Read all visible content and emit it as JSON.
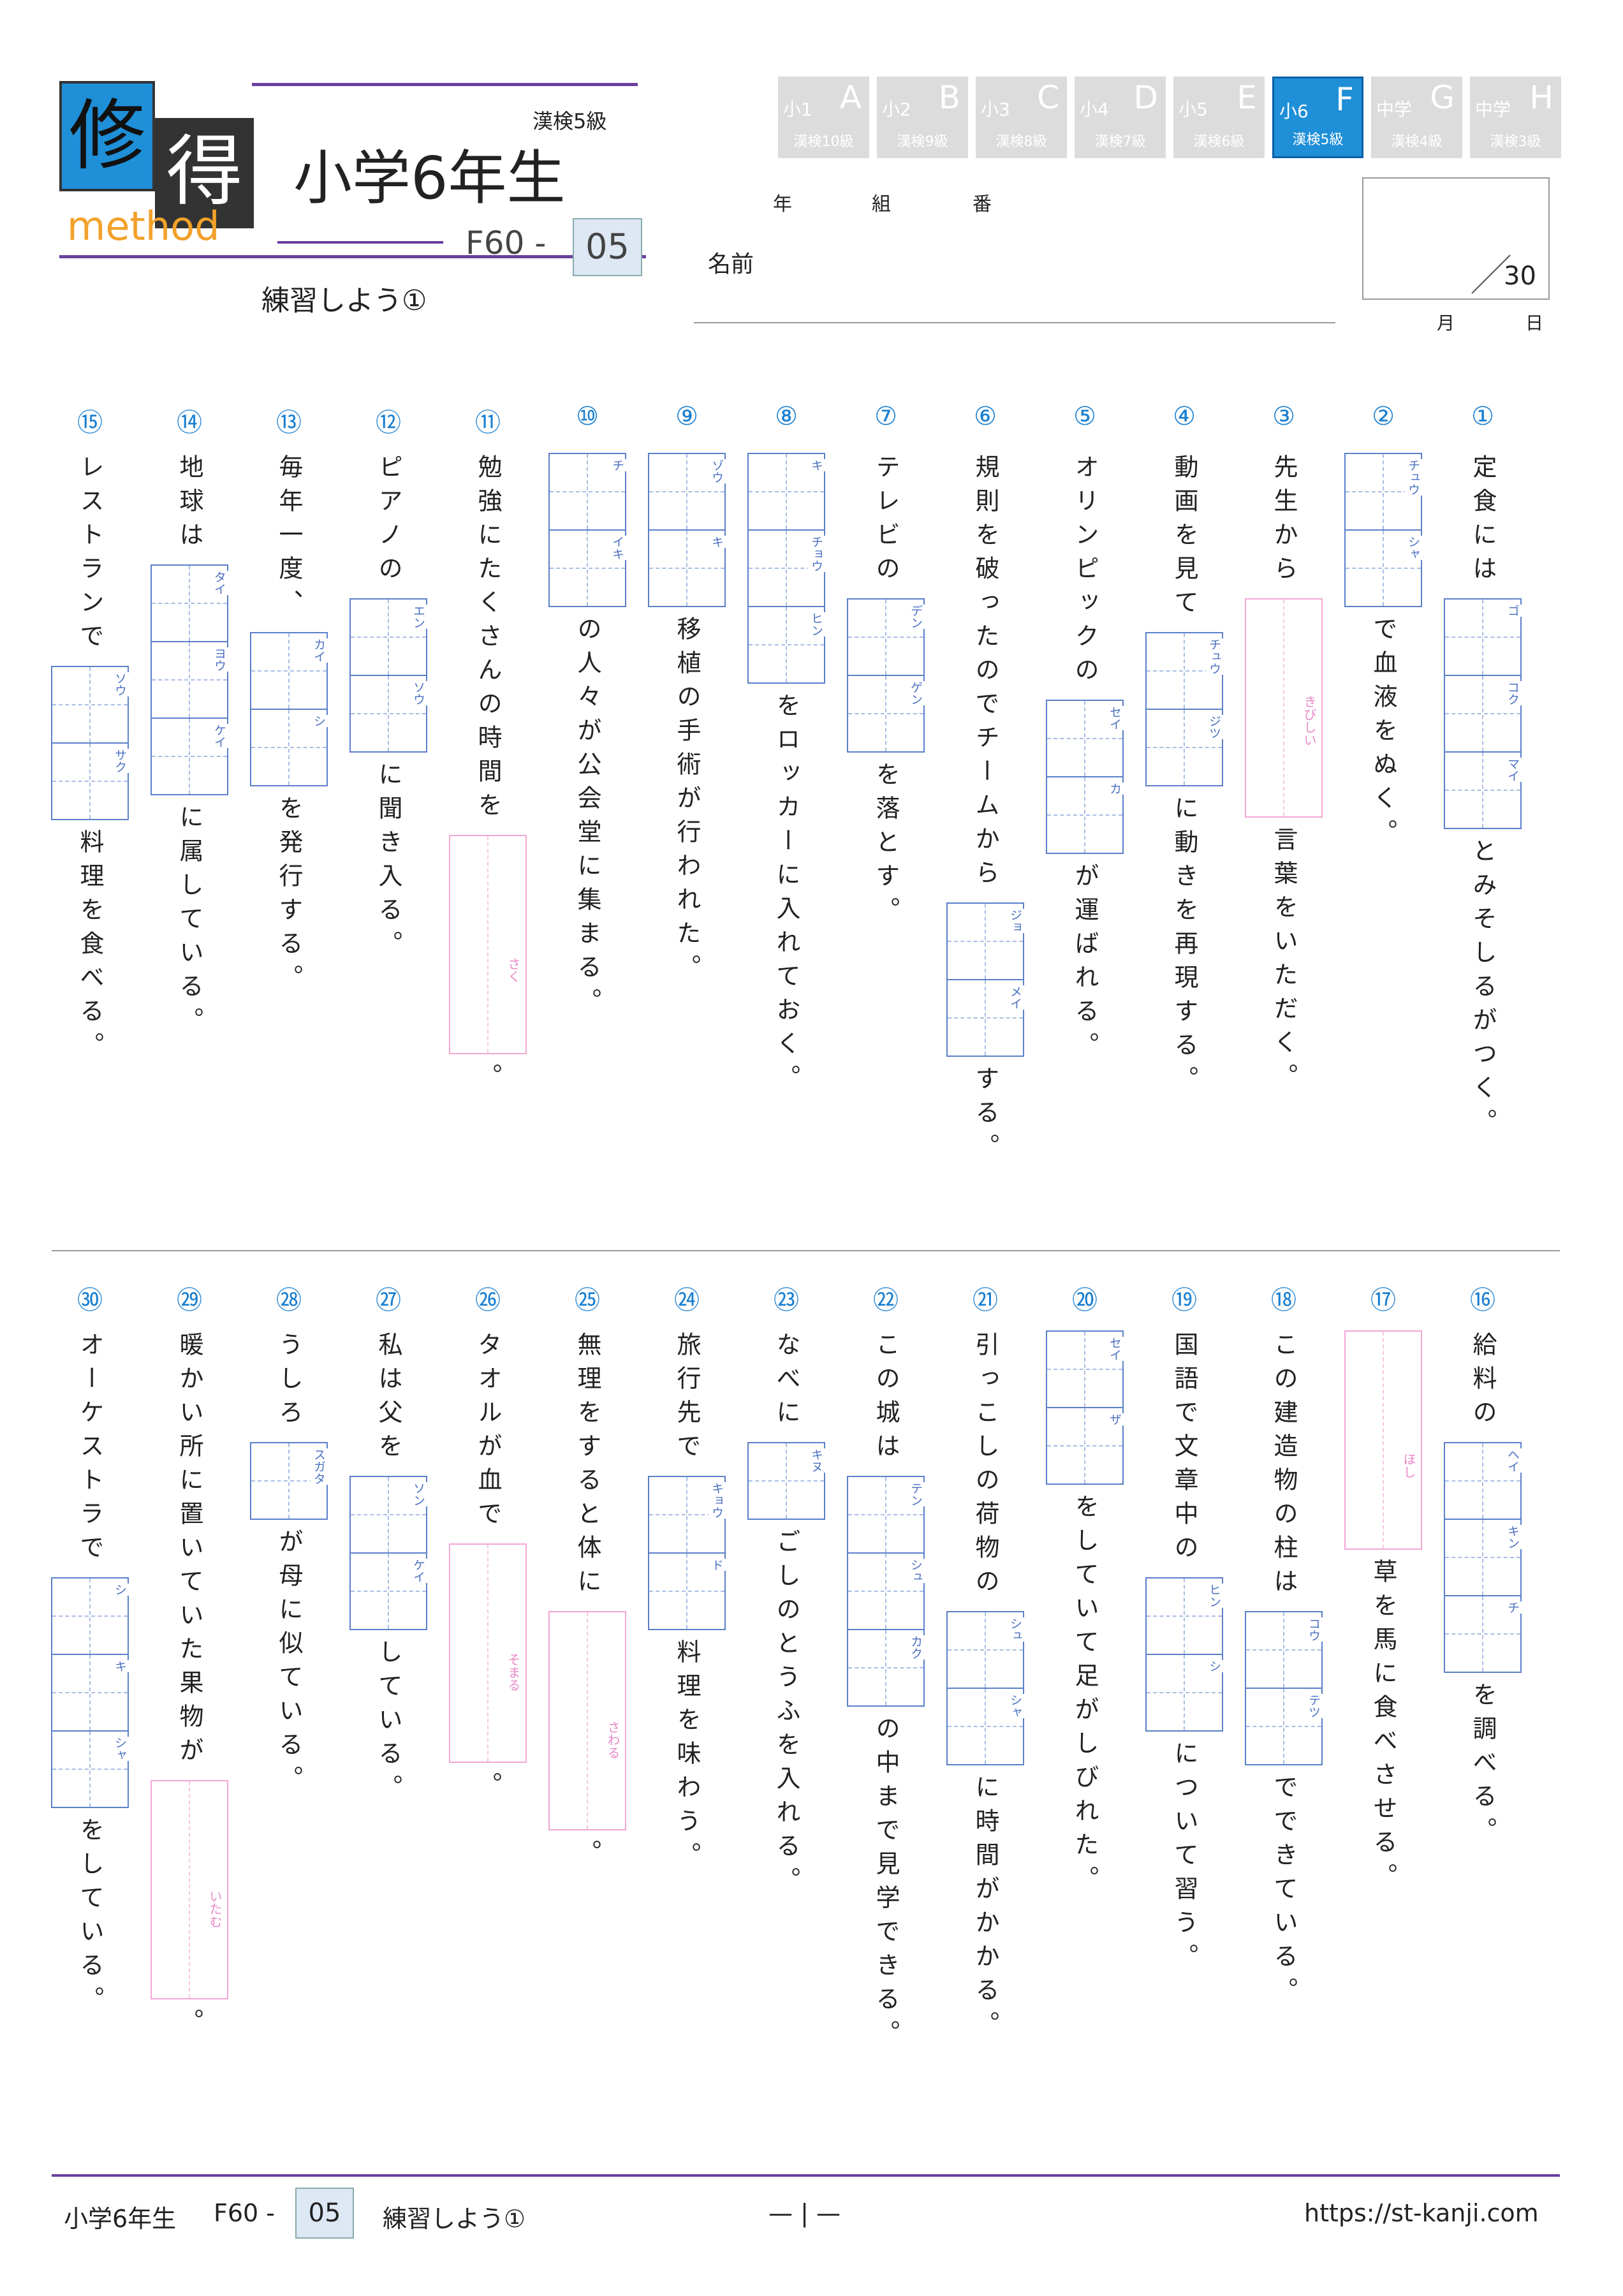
{
  "header": {
    "logo": {
      "char1": "修",
      "char2": "得",
      "method": "method"
    },
    "kanken": "漢検5級",
    "title": "小学6年生",
    "code": "F60 -",
    "number": "05",
    "subtitle": "練習しよう①"
  },
  "tabs": [
    {
      "grade": "小1",
      "letter": "A",
      "level": "漢検10級"
    },
    {
      "grade": "小2",
      "letter": "B",
      "level": "漢検9級"
    },
    {
      "grade": "小3",
      "letter": "C",
      "level": "漢検8級"
    },
    {
      "grade": "小4",
      "letter": "D",
      "level": "漢検7級"
    },
    {
      "grade": "小5",
      "letter": "E",
      "level": "漢検6級"
    },
    {
      "grade": "小6",
      "letter": "F",
      "level": "漢検5級"
    },
    {
      "grade": "中学",
      "letter": "G",
      "level": "漢検4級"
    },
    {
      "grade": "中学",
      "letter": "H",
      "level": "漢検3級"
    }
  ],
  "active_tab": 5,
  "name_area": {
    "year": "年",
    "class": "組",
    "seat": "番",
    "name": "名前",
    "score": "30",
    "month": "月",
    "day": "日"
  },
  "questions": [
    {
      "number": "①",
      "parts": [
        {
          "text": "定食には"
        },
        {
          "readings": [
            "ゴ",
            "コク",
            "マイ"
          ]
        },
        {
          "text": "とみそしるがつく。"
        }
      ]
    },
    {
      "number": "②",
      "parts": [
        {
          "readings": [
            "チュウ",
            "シャ"
          ]
        },
        {
          "text": "で血液をぬく。"
        }
      ]
    },
    {
      "number": "③",
      "parts": [
        {
          "text": "先生から"
        },
        {
          "hint": "きびしい"
        },
        {
          "text": "言葉をいただく。"
        }
      ]
    },
    {
      "number": "④",
      "parts": [
        {
          "text": "動画を見て"
        },
        {
          "readings": [
            "チュウ",
            "ジツ"
          ]
        },
        {
          "text": "に動きを再現する。"
        }
      ]
    },
    {
      "number": "⑤",
      "parts": [
        {
          "text": "オリンピックの"
        },
        {
          "readings": [
            "セイ",
            "カ"
          ]
        },
        {
          "text": "が運ばれる。"
        }
      ]
    },
    {
      "number": "⑥",
      "parts": [
        {
          "text": "規則を破ったのでチームから"
        },
        {
          "readings": [
            "ジョ",
            "メイ"
          ]
        },
        {
          "text": "する。"
        }
      ]
    },
    {
      "number": "⑦",
      "parts": [
        {
          "text": "テレビの"
        },
        {
          "readings": [
            "デン",
            "ゲン"
          ]
        },
        {
          "text": "を落とす。"
        }
      ]
    },
    {
      "number": "⑧",
      "parts": [
        {
          "readings": [
            "キ",
            "チョウ",
            "ヒン"
          ]
        },
        {
          "text": "をロッカーに入れておく。"
        }
      ]
    },
    {
      "number": "⑨",
      "parts": [
        {
          "readings": [
            "ゾウ",
            "キ"
          ]
        },
        {
          "text": "移植の手術が行われた。"
        }
      ]
    },
    {
      "number": "⑩",
      "parts": [
        {
          "readings": [
            "チ",
            "イキ"
          ]
        },
        {
          "text": "の人々が公会堂に集まる。"
        }
      ]
    },
    {
      "number": "⑪",
      "parts": [
        {
          "text": "勉強にたくさんの時間を"
        },
        {
          "hint": "さく"
        },
        {
          "text": "。"
        }
      ]
    },
    {
      "number": "⑫",
      "parts": [
        {
          "text": "ピアノの"
        },
        {
          "readings": [
            "エン",
            "ソウ"
          ]
        },
        {
          "text": "に聞き入る。"
        }
      ]
    },
    {
      "number": "⑬",
      "parts": [
        {
          "text": "毎年一度、"
        },
        {
          "readings": [
            "カイ",
            "シ"
          ]
        },
        {
          "text": "を発行する。"
        }
      ]
    },
    {
      "number": "⑭",
      "parts": [
        {
          "text": "地球は"
        },
        {
          "readings": [
            "タイ",
            "ヨウ",
            "ケイ"
          ]
        },
        {
          "text": "に属している。"
        }
      ]
    },
    {
      "number": "⑮",
      "parts": [
        {
          "text": "レストランで"
        },
        {
          "readings": [
            "ソウ",
            "サク"
          ]
        },
        {
          "text": "料理を食べる。"
        }
      ]
    },
    {
      "number": "⑯",
      "parts": [
        {
          "text": "給料の"
        },
        {
          "readings": [
            "ヘイ",
            "キン",
            "チ"
          ]
        },
        {
          "text": "を調べる。"
        }
      ]
    },
    {
      "number": "⑰",
      "parts": [
        {
          "hint": "ほし"
        },
        {
          "text": "草を馬に食べさせる。"
        }
      ]
    },
    {
      "number": "⑱",
      "parts": [
        {
          "text": "この建造物の柱は"
        },
        {
          "readings": [
            "コウ",
            "テツ"
          ]
        },
        {
          "text": "でできている。"
        }
      ]
    },
    {
      "number": "⑲",
      "parts": [
        {
          "text": "国語で文章中の"
        },
        {
          "readings": [
            "ヒン",
            "シ"
          ]
        },
        {
          "text": "について習う。"
        }
      ]
    },
    {
      "number": "⑳",
      "parts": [
        {
          "readings": [
            "セイ",
            "ザ"
          ]
        },
        {
          "text": "をしていて足がしびれた。"
        }
      ]
    },
    {
      "number": "㉑",
      "parts": [
        {
          "text": "引っこしの荷物の"
        },
        {
          "readings": [
            "シュ",
            "シャ"
          ]
        },
        {
          "text": "に時間がかかる。"
        }
      ]
    },
    {
      "number": "㉒",
      "parts": [
        {
          "text": "この城は"
        },
        {
          "readings": [
            "テン",
            "シュ",
            "カク"
          ]
        },
        {
          "text": "の中まで見学できる。"
        }
      ]
    },
    {
      "number": "㉓",
      "parts": [
        {
          "text": "なべに"
        },
        {
          "readings": [
            "キヌ"
          ]
        },
        {
          "text": "ごしのとうふを入れる。"
        }
      ]
    },
    {
      "number": "㉔",
      "parts": [
        {
          "text": "旅行先で"
        },
        {
          "readings": [
            "キョウ",
            "ド"
          ]
        },
        {
          "text": "料理を味わう。"
        }
      ]
    },
    {
      "number": "㉕",
      "parts": [
        {
          "text": "無理をすると体に"
        },
        {
          "hint": "さわる"
        },
        {
          "text": "。"
        }
      ]
    },
    {
      "number": "㉖",
      "parts": [
        {
          "text": "タオルが血で"
        },
        {
          "hint": "そまる"
        },
        {
          "text": "。"
        }
      ]
    },
    {
      "number": "㉗",
      "parts": [
        {
          "text": "私は父を"
        },
        {
          "readings": [
            "ソン",
            "ケイ"
          ]
        },
        {
          "text": "している。"
        }
      ]
    },
    {
      "number": "㉘",
      "parts": [
        {
          "text": "うしろ"
        },
        {
          "readings": [
            "スガタ"
          ]
        },
        {
          "text": "が母に似ている。"
        }
      ]
    },
    {
      "number": "㉙",
      "parts": [
        {
          "text": "暖かい所に置いていた果物が"
        },
        {
          "hint": "いたむ"
        },
        {
          "text": "。"
        }
      ]
    },
    {
      "number": "㉚",
      "parts": [
        {
          "text": "オーケストラで"
        },
        {
          "readings": [
            "シ",
            "キ",
            "シャ"
          ]
        },
        {
          "text": "をしている。"
        }
      ]
    }
  ],
  "footer": {
    "title": "小学6年生",
    "code": "F60 -",
    "number": "05",
    "subtitle": "練習しよう①",
    "page": "— | —",
    "url": "https://st-kanji.com"
  }
}
